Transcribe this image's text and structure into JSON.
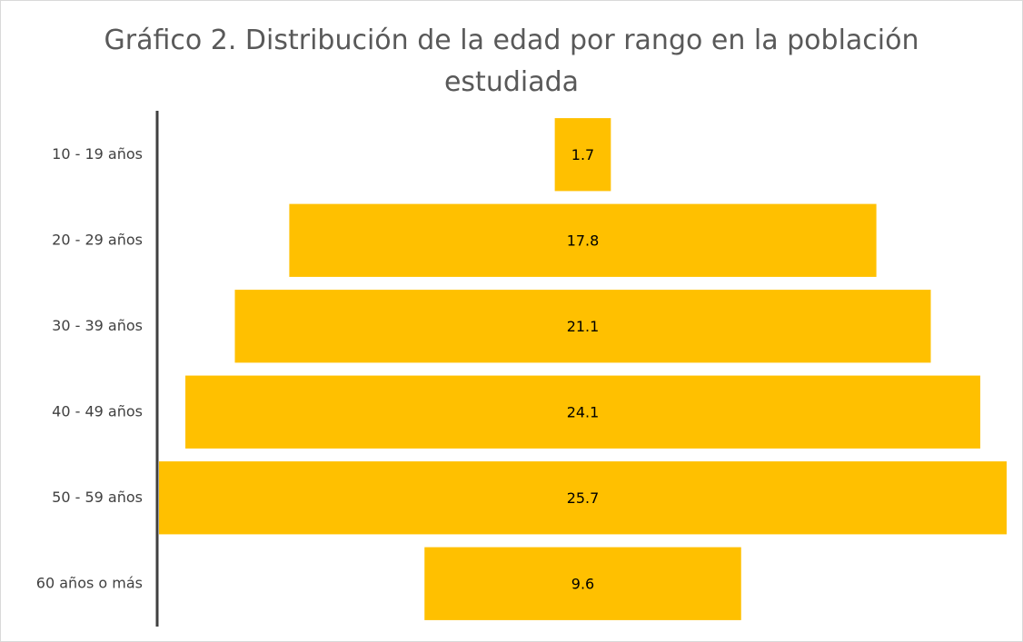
{
  "chart_data": {
    "type": "funnel",
    "title": "Gráfico 2. Distribución de la edad por rango en la población estudiada",
    "categories": [
      "10 - 19 años",
      "20 - 29 años",
      "30 - 39 años",
      "40 - 49 años",
      "50 - 59 años",
      "60 años o más"
    ],
    "values": [
      1.7,
      17.8,
      21.1,
      24.1,
      25.7,
      9.6
    ],
    "color": "#ffc000"
  }
}
